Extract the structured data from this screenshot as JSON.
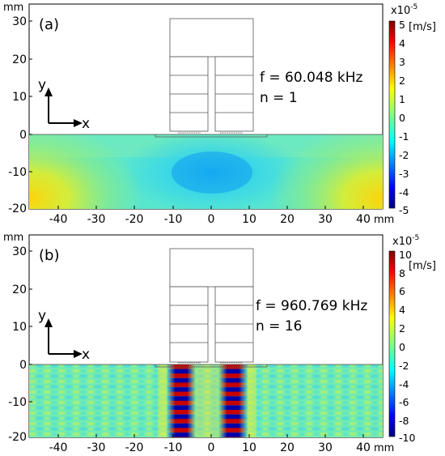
{
  "panels": [
    {
      "label": "(a)",
      "freq": "f = 60.048 kHz",
      "mode": "n = 1",
      "y_unit": "mm",
      "x_unit": "mm",
      "y_ticks": [
        "30",
        "20",
        "10",
        "0",
        "-10",
        "-20"
      ],
      "x_ticks": [
        "-40",
        "-30",
        "-20",
        "-10",
        "0",
        "10",
        "20",
        "30",
        "40"
      ],
      "axis_y": "y",
      "axis_x": "x",
      "colorbar": {
        "scale": "x10",
        "exp": "-5",
        "unit": "[m/s]",
        "ticks": [
          "5",
          "4",
          "3",
          "2",
          "1",
          "0",
          "-1",
          "-2",
          "-3",
          "-4",
          "-5"
        ]
      }
    },
    {
      "label": "(b)",
      "freq": "f = 960.769 kHz",
      "mode": "n = 16",
      "y_unit": "mm",
      "x_unit": "mm",
      "y_ticks": [
        "30",
        "20",
        "10",
        "0",
        "-10",
        "-20"
      ],
      "x_ticks": [
        "-40",
        "-30",
        "-20",
        "-10",
        "0",
        "10",
        "20",
        "30",
        "40"
      ],
      "axis_y": "y",
      "axis_x": "x",
      "colorbar": {
        "scale": "x10",
        "exp": "-5",
        "unit": "[m/s]",
        "ticks": [
          "10",
          "8",
          "6",
          "4",
          "2",
          "0",
          "-2",
          "-4",
          "-6",
          "-8",
          "-10"
        ]
      }
    }
  ]
}
